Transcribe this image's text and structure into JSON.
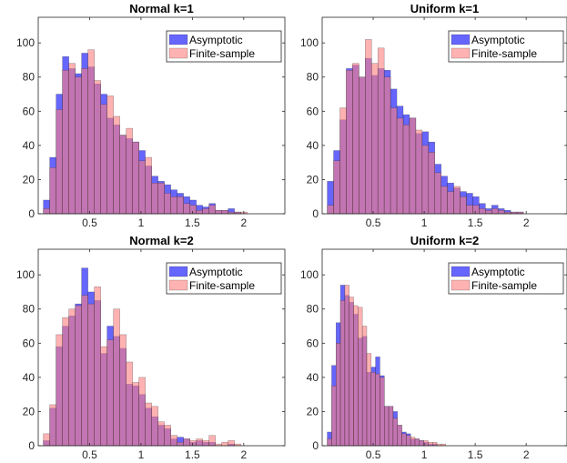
{
  "colors": {
    "asymptotic": "#0000ff",
    "finite": "#ff7f7f",
    "axis": "#262626",
    "overlap": "#7a2aa7"
  },
  "chart_data": [
    {
      "type": "bar",
      "title": "Normal k=1",
      "xlim": [
        0,
        2.4
      ],
      "ylim": [
        0,
        115
      ],
      "xticks": [
        0.5,
        1,
        1.5,
        2
      ],
      "xtick_labels": [
        "0.5",
        "1",
        "1.5",
        "2"
      ],
      "yticks": [
        0,
        20,
        40,
        60,
        80,
        100
      ],
      "ytick_labels": [
        "0",
        "20",
        "40",
        "60",
        "80",
        "100"
      ],
      "legend_position": "top-right",
      "bin_start": 0.05,
      "bin_width": 0.062,
      "series": [
        {
          "name": "Asymptotic",
          "values": [
            8,
            33,
            70,
            92,
            85,
            82,
            94,
            86,
            76,
            70,
            56,
            52,
            46,
            44,
            42,
            37,
            28,
            22,
            19,
            17,
            14,
            12,
            10,
            8,
            5,
            4,
            6,
            2,
            2,
            3,
            1,
            0,
            0,
            0
          ]
        },
        {
          "name": "Finite-sample",
          "values": [
            3,
            27,
            61,
            84,
            88,
            80,
            85,
            96,
            78,
            64,
            69,
            57,
            46,
            50,
            42,
            31,
            33,
            18,
            18,
            12,
            10,
            10,
            6,
            5,
            2,
            3,
            5,
            2,
            2,
            1,
            1,
            1,
            0,
            0
          ]
        }
      ]
    },
    {
      "type": "bar",
      "title": "Uniform k=1",
      "xlim": [
        0,
        2.4
      ],
      "ylim": [
        0,
        115
      ],
      "xticks": [
        0.5,
        1,
        1.5,
        2
      ],
      "xtick_labels": [
        "0.5",
        "1",
        "1.5",
        "2"
      ],
      "yticks": [
        0,
        20,
        40,
        60,
        80,
        100
      ],
      "ytick_labels": [
        "0",
        "20",
        "40",
        "60",
        "80",
        "100"
      ],
      "legend_position": "top-right",
      "bin_start": 0.05,
      "bin_width": 0.062,
      "series": [
        {
          "name": "Asymptotic",
          "values": [
            19,
            37,
            55,
            85,
            87,
            80,
            91,
            81,
            85,
            84,
            73,
            63,
            58,
            56,
            47,
            48,
            42,
            29,
            22,
            18,
            15,
            13,
            12,
            10,
            6,
            3,
            5,
            3,
            2,
            1,
            1,
            0,
            0,
            0
          ]
        },
        {
          "name": "Finite-sample",
          "values": [
            5,
            31,
            62,
            84,
            88,
            80,
            102,
            88,
            97,
            80,
            62,
            56,
            52,
            56,
            49,
            40,
            36,
            24,
            16,
            13,
            16,
            10,
            5,
            5,
            3,
            2,
            3,
            2,
            1,
            1,
            1,
            0,
            0,
            0
          ]
        }
      ]
    },
    {
      "type": "bar",
      "title": "Normal k=2",
      "xlim": [
        0,
        2.4
      ],
      "ylim": [
        0,
        115
      ],
      "xticks": [
        0.5,
        1,
        1.5,
        2
      ],
      "xtick_labels": [
        "0.5",
        "1",
        "1.5",
        "2"
      ],
      "yticks": [
        0,
        20,
        40,
        60,
        80,
        100
      ],
      "ytick_labels": [
        "0",
        "20",
        "40",
        "60",
        "80",
        "100"
      ],
      "legend_position": "top-right",
      "bin_start": 0.05,
      "bin_width": 0.062,
      "series": [
        {
          "name": "Asymptotic",
          "values": [
            3,
            22,
            58,
            70,
            76,
            83,
            104,
            90,
            85,
            54,
            70,
            64,
            57,
            36,
            35,
            30,
            22,
            17,
            12,
            10,
            4,
            5,
            4,
            2,
            3,
            2,
            2,
            0,
            0,
            1,
            0,
            0,
            0,
            0
          ]
        },
        {
          "name": "Finite-sample",
          "values": [
            7,
            24,
            65,
            75,
            80,
            82,
            88,
            83,
            93,
            58,
            62,
            80,
            65,
            49,
            37,
            40,
            25,
            23,
            14,
            12,
            6,
            2,
            4,
            3,
            4,
            3,
            6,
            1,
            2,
            3,
            1,
            0,
            0,
            0
          ]
        }
      ]
    },
    {
      "type": "bar",
      "title": "Uniform k=2",
      "xlim": [
        0,
        2.4
      ],
      "ylim": [
        0,
        115
      ],
      "xticks": [
        0.5,
        1,
        1.5,
        2
      ],
      "xtick_labels": [
        "0.5",
        "1",
        "1.5",
        "2"
      ],
      "yticks": [
        0,
        20,
        40,
        60,
        80,
        100
      ],
      "ytick_labels": [
        "0",
        "20",
        "40",
        "60",
        "80",
        "100"
      ],
      "legend_position": "top-right",
      "bin_start": 0.05,
      "bin_width": 0.043,
      "series": [
        {
          "name": "Asymptotic",
          "values": [
            8,
            47,
            72,
            94,
            88,
            84,
            77,
            63,
            64,
            43,
            46,
            52,
            41,
            23,
            23,
            20,
            12,
            8,
            7,
            4,
            4,
            3,
            2,
            1,
            1,
            0,
            0,
            0,
            0,
            0,
            0,
            0,
            0,
            0
          ]
        },
        {
          "name": "Finite-sample",
          "values": [
            4,
            35,
            60,
            85,
            94,
            87,
            82,
            81,
            70,
            54,
            43,
            42,
            40,
            23,
            23,
            16,
            12,
            7,
            6,
            5,
            4,
            3,
            3,
            2,
            2,
            1,
            1,
            0,
            0,
            0,
            0,
            0,
            0,
            0
          ]
        }
      ]
    }
  ]
}
